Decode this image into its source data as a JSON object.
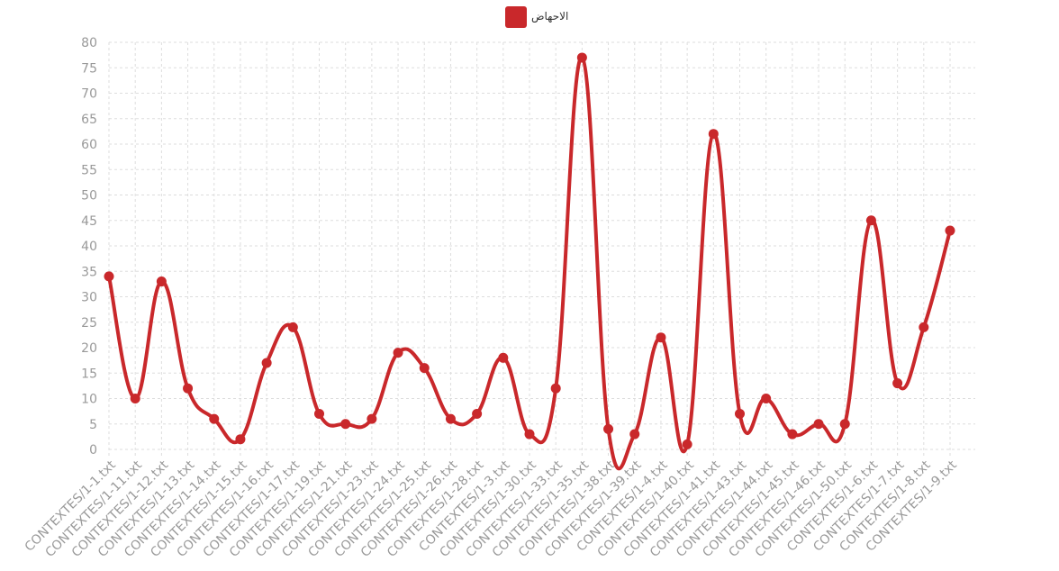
{
  "chart_data": {
    "type": "line",
    "categories": [
      "CONTEXTES/1-1.txt",
      "CONTEXTES/1-11.txt",
      "CONTEXTES/1-12.txt",
      "CONTEXTES/1-13.txt",
      "CONTEXTES/1-14.txt",
      "CONTEXTES/1-15.txt",
      "CONTEXTES/1-16.txt",
      "CONTEXTES/1-17.txt",
      "CONTEXTES/1-19.txt",
      "CONTEXTES/1-21.txt",
      "CONTEXTES/1-23.txt",
      "CONTEXTES/1-24.txt",
      "CONTEXTES/1-25.txt",
      "CONTEXTES/1-26.txt",
      "CONTEXTES/1-28.txt",
      "CONTEXTES/1-3.txt",
      "CONTEXTES/1-30.txt",
      "CONTEXTES/1-33.txt",
      "CONTEXTES/1-35.txt",
      "CONTEXTES/1-38.txt",
      "CONTEXTES/1-39.txt",
      "CONTEXTES/1-4.txt",
      "CONTEXTES/1-40.txt",
      "CONTEXTES/1-41.txt",
      "CONTEXTES/1-43.txt",
      "CONTEXTES/1-44.txt",
      "CONTEXTES/1-45.txt",
      "CONTEXTES/1-46.txt",
      "CONTEXTES/1-50.txt",
      "CONTEXTES/1-6.txt",
      "CONTEXTES/1-7.txt",
      "CONTEXTES/1-8.txt",
      "CONTEXTES/1-9.txt"
    ],
    "series": [
      {
        "name": "الاحهاض",
        "color": "#c9282b",
        "values": [
          34,
          10,
          33,
          12,
          6,
          2,
          17,
          24,
          7,
          5,
          6,
          19,
          16,
          6,
          7,
          18,
          3,
          12,
          77,
          4,
          3,
          22,
          1,
          62,
          7,
          10,
          3,
          5,
          5,
          45,
          13,
          24,
          43
        ]
      }
    ],
    "ylim": [
      0,
      80
    ],
    "yticks": [
      0,
      5,
      10,
      15,
      20,
      25,
      30,
      35,
      40,
      45,
      50,
      55,
      60,
      65,
      70,
      75,
      80
    ],
    "grid": true,
    "legend": "top"
  }
}
